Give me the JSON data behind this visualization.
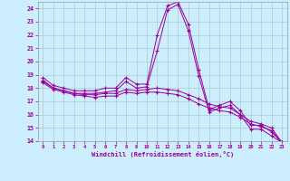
{
  "xlabel": "Windchill (Refroidissement éolien,°C)",
  "bg_color": "#cceeff",
  "line_color": "#990099",
  "grid_color": "#aacccc",
  "xlim": [
    -0.5,
    23.5
  ],
  "ylim": [
    14,
    24.5
  ],
  "xticks": [
    0,
    1,
    2,
    3,
    4,
    5,
    6,
    7,
    8,
    9,
    10,
    11,
    12,
    13,
    14,
    15,
    16,
    17,
    18,
    19,
    20,
    21,
    22,
    23
  ],
  "yticks": [
    14,
    15,
    16,
    17,
    18,
    19,
    20,
    21,
    22,
    23,
    24
  ],
  "curve1_x": [
    0,
    1,
    2,
    3,
    4,
    5,
    6,
    7,
    8,
    9,
    10,
    11,
    12,
    13,
    14,
    15,
    16,
    17,
    18,
    19,
    20,
    21,
    22,
    23
  ],
  "curve1_y": [
    18.8,
    18.2,
    18.0,
    17.8,
    17.8,
    17.8,
    18.0,
    18.0,
    18.8,
    18.3,
    18.3,
    22.0,
    24.2,
    24.5,
    22.8,
    19.4,
    16.4,
    16.7,
    17.0,
    16.3,
    15.2,
    15.2,
    14.7,
    13.9
  ],
  "curve2_x": [
    0,
    1,
    2,
    3,
    4,
    5,
    6,
    7,
    8,
    9,
    10,
    11,
    12,
    13,
    14,
    15,
    16,
    17,
    18,
    19,
    20,
    21,
    22,
    23
  ],
  "curve2_y": [
    18.6,
    18.0,
    17.8,
    17.6,
    17.6,
    17.6,
    17.7,
    17.8,
    18.5,
    18.0,
    18.1,
    20.8,
    23.9,
    24.3,
    22.3,
    18.9,
    16.2,
    16.5,
    16.7,
    16.0,
    14.9,
    14.9,
    14.4,
    13.9
  ],
  "curve3_x": [
    0,
    1,
    2,
    3,
    4,
    5,
    6,
    7,
    8,
    9,
    10,
    11,
    12,
    13,
    14,
    15,
    16,
    17,
    18,
    19,
    20,
    21,
    22,
    23
  ],
  "curve3_y": [
    18.5,
    18.0,
    17.8,
    17.6,
    17.5,
    17.5,
    17.6,
    17.6,
    17.9,
    17.8,
    17.9,
    18.0,
    17.9,
    17.8,
    17.5,
    17.2,
    16.8,
    16.6,
    16.5,
    16.0,
    15.5,
    15.3,
    15.0,
    13.9
  ],
  "curve4_x": [
    0,
    1,
    2,
    3,
    4,
    5,
    6,
    7,
    8,
    9,
    10,
    11,
    12,
    13,
    14,
    15,
    16,
    17,
    18,
    19,
    20,
    21,
    22,
    23
  ],
  "curve4_y": [
    18.4,
    17.9,
    17.7,
    17.5,
    17.4,
    17.3,
    17.4,
    17.4,
    17.7,
    17.6,
    17.7,
    17.7,
    17.6,
    17.5,
    17.2,
    16.8,
    16.5,
    16.3,
    16.2,
    15.8,
    15.3,
    15.1,
    14.8,
    13.9
  ]
}
